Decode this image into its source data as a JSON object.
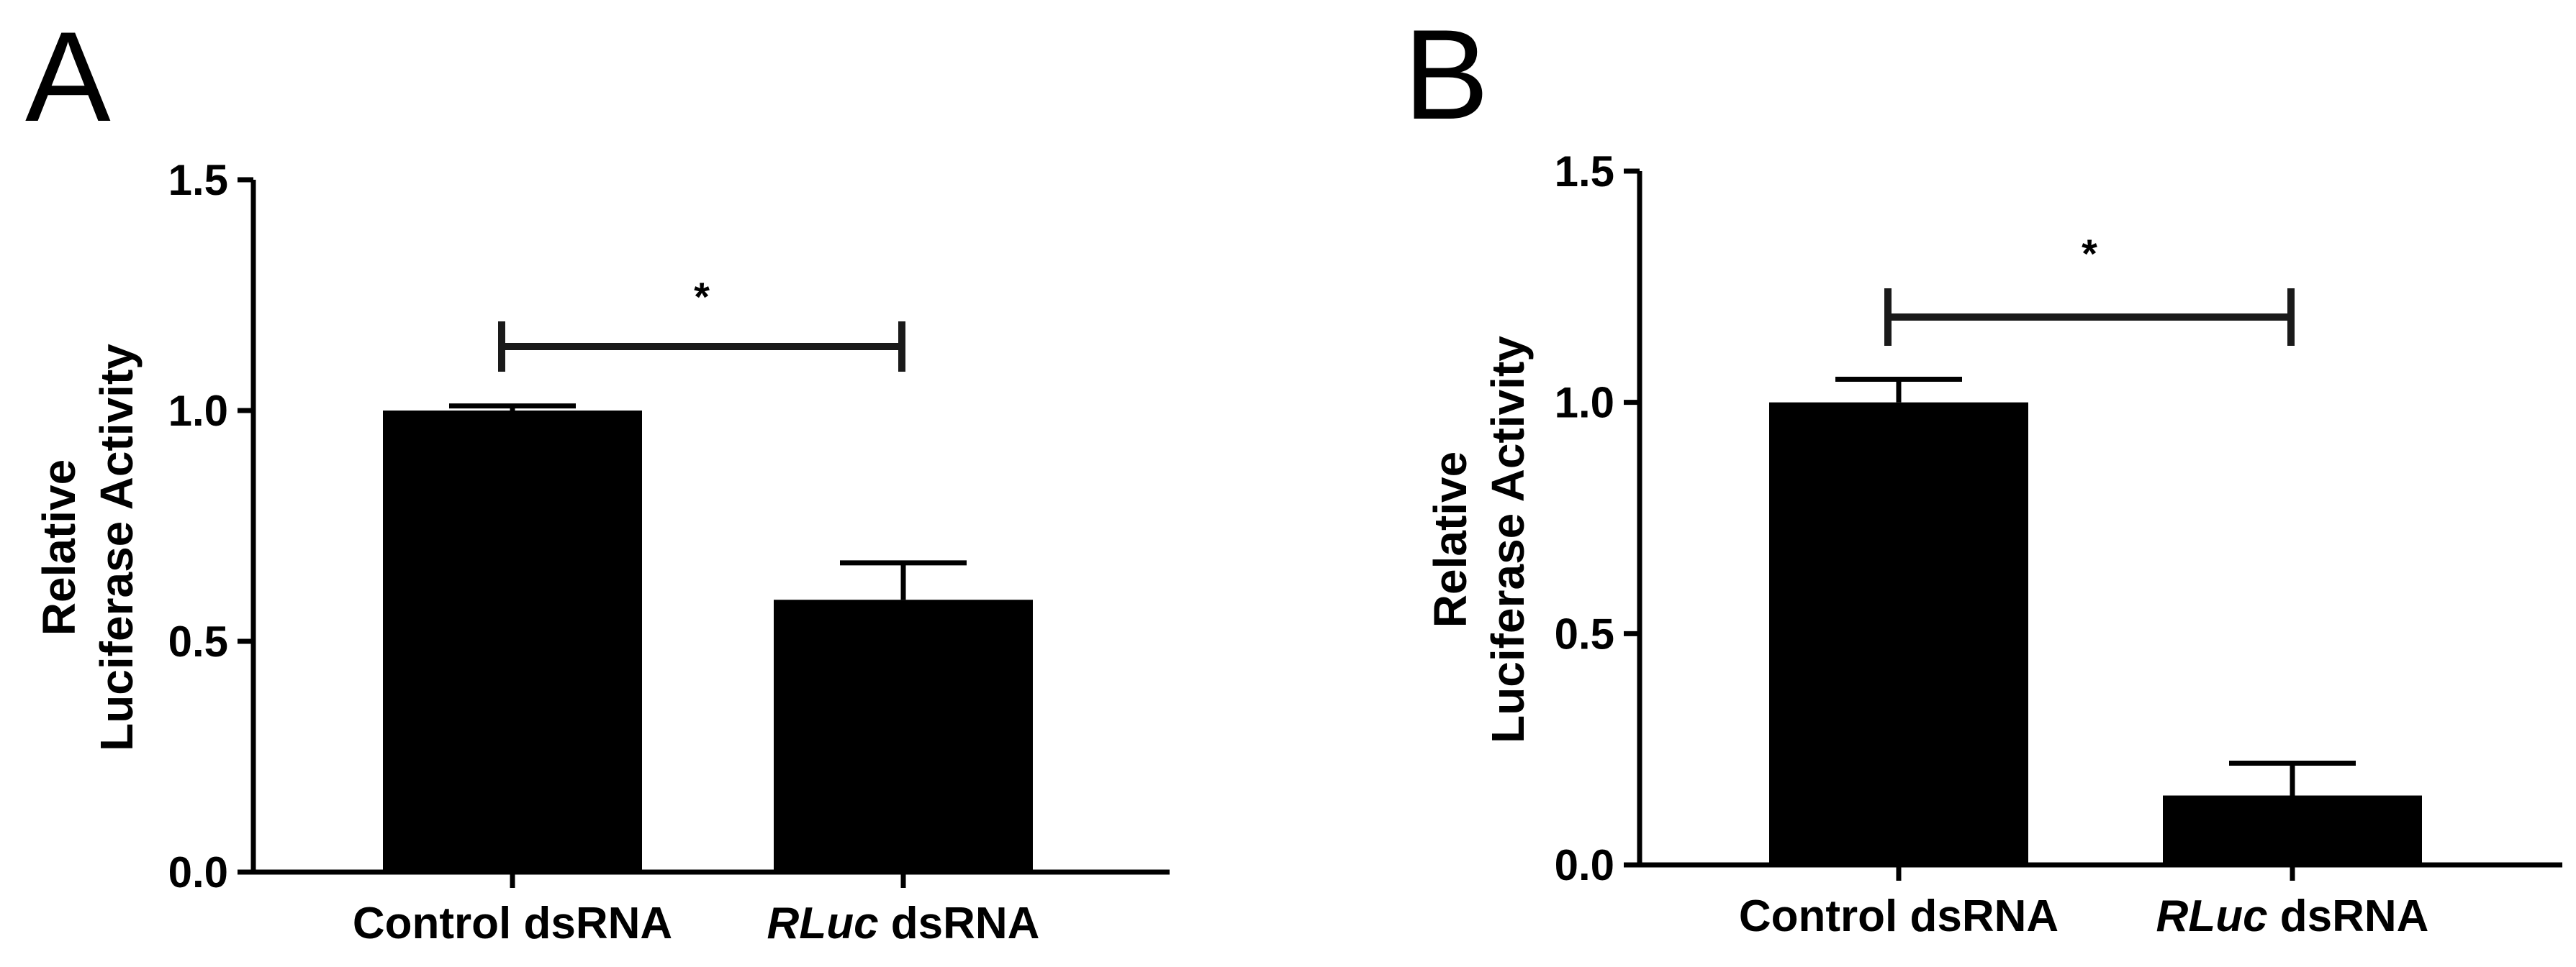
{
  "chart_data": [
    {
      "panel": "A",
      "type": "bar",
      "categories": [
        {
          "label_italic": "",
          "label_rest": "Control dsRNA"
        },
        {
          "label_italic": "RLuc",
          "label_rest": " dsRNA"
        }
      ],
      "values": [
        1.0,
        0.59
      ],
      "error_upper": [
        0.01,
        0.08
      ],
      "ylabel_lines": [
        "Relative",
        "Luciferase Activity"
      ],
      "xlabel": "",
      "ylim": [
        0,
        1.5
      ],
      "yticks": [
        "0.0",
        "0.5",
        "1.0",
        "1.5"
      ],
      "significance": {
        "from": 0,
        "to": 1,
        "label": "*"
      },
      "bar_color": "#000000",
      "grid": false,
      "legend": "none"
    },
    {
      "panel": "B",
      "type": "bar",
      "categories": [
        {
          "label_italic": "",
          "label_rest": "Control dsRNA"
        },
        {
          "label_italic": "RLuc",
          "label_rest": " dsRNA"
        }
      ],
      "values": [
        1.0,
        0.15
      ],
      "error_upper": [
        0.05,
        0.07
      ],
      "ylabel_lines": [
        "Relative",
        "Luciferase Activity"
      ],
      "xlabel": "",
      "ylim": [
        0,
        1.5
      ],
      "yticks": [
        "0.0",
        "0.5",
        "1.0",
        "1.5"
      ],
      "significance": {
        "from": 0,
        "to": 1,
        "label": "*"
      },
      "bar_color": "#000000",
      "grid": false,
      "legend": "none"
    }
  ]
}
